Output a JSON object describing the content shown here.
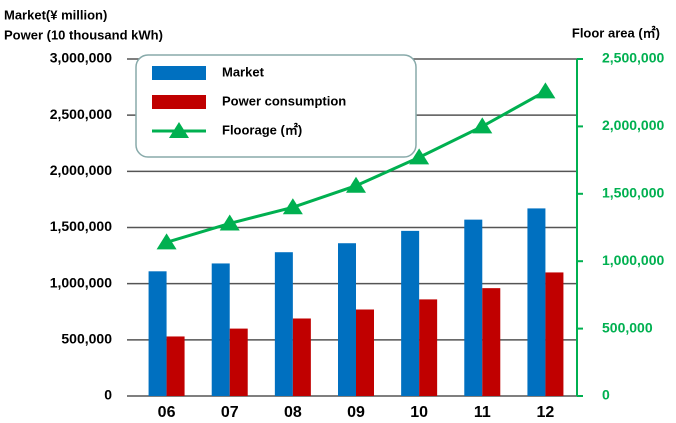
{
  "chart_data": {
    "type": "bar",
    "y_title_1": "Market(¥ million)",
    "y_title_2": "Power (10 thousand kWh)",
    "y2_title": "Floor area (㎡)",
    "categories": [
      "06",
      "07",
      "08",
      "09",
      "10",
      "11",
      "12"
    ],
    "series": [
      {
        "name": "Market",
        "color": "#0070c0",
        "values": [
          1110000,
          1180000,
          1280000,
          1360000,
          1470000,
          1570000,
          1670000
        ]
      },
      {
        "name": "Power consumption",
        "color": "#c00000",
        "values": [
          530000,
          600000,
          690000,
          770000,
          860000,
          960000,
          1100000
        ]
      },
      {
        "name": "Floorage (㎡)",
        "color": "#00b050",
        "axis": "y2",
        "values": [
          1140000,
          1280000,
          1400000,
          1560000,
          1770000,
          2000000,
          2260000
        ]
      }
    ],
    "ylim": [
      0,
      3000000
    ],
    "yticks": [
      0,
      {
        "value": 500000,
        "label": "500,000"
      },
      {
        "value": 1000000,
        "label": "1,000,000"
      },
      {
        "value": 1500000,
        "label": "1,500,000"
      },
      {
        "value": 2000000,
        "label": "2,000,000"
      },
      {
        "value": 2500000,
        "label": "2,500,000"
      },
      {
        "value": 3000000,
        "label": "3,000,000"
      }
    ],
    "y2lim": [
      0,
      2500000
    ],
    "y2ticks": [
      0,
      {
        "value": 500000,
        "label": "500,000"
      },
      {
        "value": 1000000,
        "label": "1,000,000"
      },
      {
        "value": 1500000,
        "label": "1,500,000"
      },
      {
        "value": 2000000,
        "label": "2,000,000"
      },
      {
        "value": 2500000,
        "label": "2,500,000"
      }
    ],
    "grid": true
  }
}
